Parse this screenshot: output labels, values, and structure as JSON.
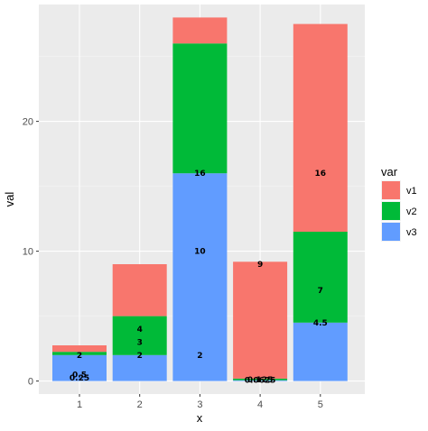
{
  "chart_data": {
    "type": "bar",
    "stacked": true,
    "categories": [
      "1",
      "2",
      "3",
      "4",
      "5"
    ],
    "series": [
      {
        "name": "v1",
        "color": "#F8766D",
        "values": [
          0.5,
          4,
          2,
          9,
          16
        ]
      },
      {
        "name": "v2",
        "color": "#00BA38",
        "values": [
          0.25,
          3,
          10,
          0.125,
          7
        ]
      },
      {
        "name": "v3",
        "color": "#619CFF",
        "values": [
          2,
          2,
          16,
          0.0625,
          4.5
        ]
      }
    ],
    "labels": [
      {
        "x": "1",
        "y": 0.25,
        "text": "0.25"
      },
      {
        "x": "1",
        "y": 0.5,
        "text": "0.5"
      },
      {
        "x": "1",
        "y": 2,
        "text": "2"
      },
      {
        "x": "2",
        "y": 2,
        "text": "2"
      },
      {
        "x": "2",
        "y": 3,
        "text": "3"
      },
      {
        "x": "2",
        "y": 4,
        "text": "4"
      },
      {
        "x": "3",
        "y": 2,
        "text": "2"
      },
      {
        "x": "3",
        "y": 10,
        "text": "10"
      },
      {
        "x": "3",
        "y": 16,
        "text": "16"
      },
      {
        "x": "4",
        "y": 0.0625,
        "text": "0.0625"
      },
      {
        "x": "4",
        "y": 0.125,
        "text": "0.125"
      },
      {
        "x": "4",
        "y": 9,
        "text": "9"
      },
      {
        "x": "5",
        "y": 4.5,
        "text": "4.5"
      },
      {
        "x": "5",
        "y": 7,
        "text": "7"
      },
      {
        "x": "5",
        "y": 16,
        "text": "16"
      }
    ],
    "title": "",
    "xlabel": "x",
    "ylabel": "val",
    "ylim": [
      -1,
      29
    ],
    "yticks": [
      0,
      10,
      20
    ],
    "grid": true,
    "legend": {
      "title": "var",
      "position": "right"
    }
  }
}
